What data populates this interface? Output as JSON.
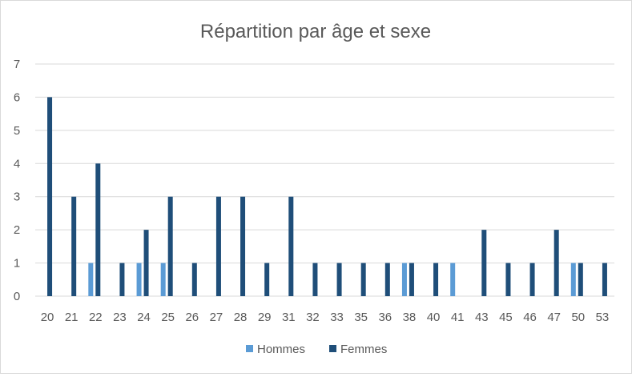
{
  "chart_data": {
    "type": "bar",
    "title": "Répartition par âge et sexe",
    "xlabel": "",
    "ylabel": "",
    "ylim": [
      0,
      7
    ],
    "yticks": [
      "0",
      "1",
      "2",
      "3",
      "4",
      "5",
      "6",
      "7"
    ],
    "grid": true,
    "legend_position": "bottom",
    "categories": [
      "20",
      "21",
      "22",
      "23",
      "24",
      "25",
      "26",
      "27",
      "28",
      "29",
      "31",
      "32",
      "33",
      "35",
      "36",
      "38",
      "40",
      "41",
      "43",
      "45",
      "46",
      "47",
      "50",
      "53"
    ],
    "series": [
      {
        "name": "Hommes",
        "color": "#5b9bd5",
        "values": [
          0,
          0,
          1,
          0,
          1,
          1,
          0,
          0,
          0,
          0,
          0,
          0,
          0,
          0,
          0,
          1,
          0,
          1,
          0,
          0,
          0,
          0,
          1,
          0
        ]
      },
      {
        "name": "Femmes",
        "color": "#1f4e79",
        "values": [
          6,
          3,
          4,
          1,
          2,
          3,
          1,
          3,
          3,
          1,
          3,
          1,
          1,
          1,
          1,
          1,
          1,
          0,
          2,
          1,
          1,
          2,
          1,
          1
        ]
      }
    ]
  }
}
